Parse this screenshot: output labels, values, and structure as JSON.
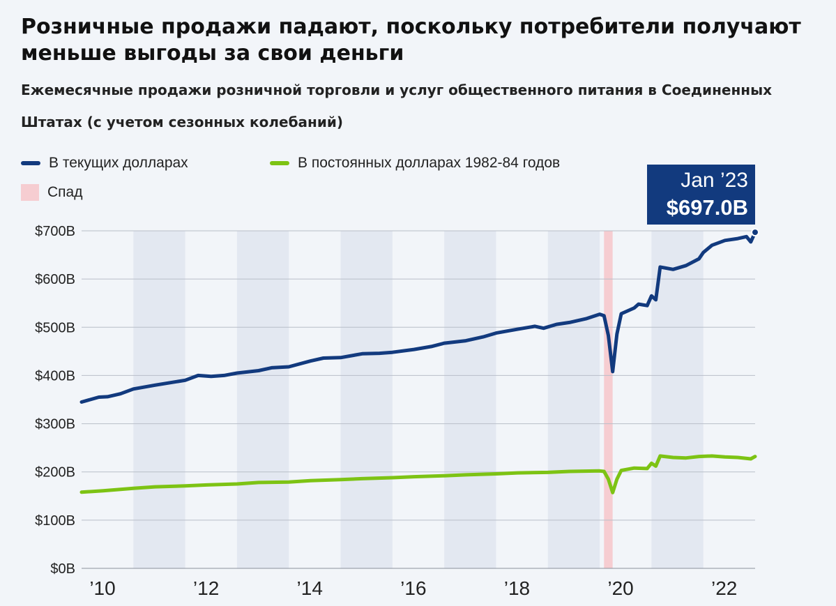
{
  "header": {
    "title": "Розничные продажи падают, поскольку потребители получают меньше выгоды за свои деньги",
    "subtitle": "Ежемесячные продажи розничной торговли и услуг общественного питания в Соединенных Штатах (с учетом сезонных колебаний)"
  },
  "legend": {
    "nominal": "В текущих долларах",
    "real": "В постоянных долларах 1982-84 годов",
    "recession": "Спад"
  },
  "callout": {
    "date": "Jan ’23",
    "value": "$697.0B"
  },
  "colors": {
    "nominal": "#123a7e",
    "real": "#7dc314",
    "recession": "#f6cdd1",
    "band": "#e3e8f1",
    "grid": "#b8bec8",
    "callout_bg": "#123a7e"
  },
  "chart_data": {
    "type": "line",
    "title": "Розничные продажи падают, поскольку потребители получают меньше выгоды за свои деньги",
    "subtitle": "Ежемесячные продажи розничной торговли и услуг общественного питания в Соединенных Штатах (с учетом сезонных колебаний)",
    "xlabel": "",
    "ylabel": "",
    "xlim": [
      "2010-01",
      "2023-01"
    ],
    "ylim": [
      0,
      700
    ],
    "y_ticks": [
      0,
      100,
      200,
      300,
      400,
      500,
      600,
      700
    ],
    "y_tick_labels": [
      "$0B",
      "$100B",
      "$200B",
      "$300B",
      "$400B",
      "$500B",
      "$600B",
      "$700B"
    ],
    "x_ticks": [
      "2010",
      "2012",
      "2014",
      "2016",
      "2018",
      "2020",
      "2022"
    ],
    "x_tick_labels": [
      "’10",
      "’12",
      "’14",
      "’16",
      "’18",
      "’20",
      "’22"
    ],
    "alternating_year_bands": [
      "2011",
      "2013",
      "2015",
      "2017",
      "2019",
      "2021"
    ],
    "recession": {
      "start": "2020-02",
      "end": "2020-04",
      "label": "Спад"
    },
    "grid": true,
    "legend_position": "top-left",
    "annotation": {
      "x": "2023-01",
      "y": 697.0,
      "text": [
        "Jan ’23",
        "$697.0B"
      ]
    },
    "series": [
      {
        "name": "В текущих долларах",
        "color": "#123a7e",
        "points": [
          [
            "2010-01",
            345
          ],
          [
            "2010-03",
            350
          ],
          [
            "2010-05",
            355
          ],
          [
            "2010-07",
            356
          ],
          [
            "2010-10",
            362
          ],
          [
            "2011-01",
            372
          ],
          [
            "2011-06",
            380
          ],
          [
            "2012-01",
            390
          ],
          [
            "2012-04",
            400
          ],
          [
            "2012-07",
            398
          ],
          [
            "2012-10",
            400
          ],
          [
            "2013-01",
            405
          ],
          [
            "2013-06",
            410
          ],
          [
            "2013-09",
            416
          ],
          [
            "2014-01",
            418
          ],
          [
            "2014-06",
            430
          ],
          [
            "2014-09",
            436
          ],
          [
            "2015-01",
            437
          ],
          [
            "2015-06",
            445
          ],
          [
            "2015-10",
            446
          ],
          [
            "2016-01",
            448
          ],
          [
            "2016-06",
            454
          ],
          [
            "2016-10",
            460
          ],
          [
            "2017-01",
            467
          ],
          [
            "2017-06",
            472
          ],
          [
            "2017-10",
            480
          ],
          [
            "2018-01",
            488
          ],
          [
            "2018-06",
            496
          ],
          [
            "2018-10",
            502
          ],
          [
            "2018-12",
            498
          ],
          [
            "2019-03",
            506
          ],
          [
            "2019-06",
            510
          ],
          [
            "2019-10",
            518
          ],
          [
            "2020-01",
            527
          ],
          [
            "2020-02",
            524
          ],
          [
            "2020-03",
            483
          ],
          [
            "2020-04",
            408
          ],
          [
            "2020-05",
            486
          ],
          [
            "2020-06",
            528
          ],
          [
            "2020-09",
            540
          ],
          [
            "2020-10",
            548
          ],
          [
            "2020-12",
            545
          ],
          [
            "2021-01",
            565
          ],
          [
            "2021-02",
            557
          ],
          [
            "2021-03",
            625
          ],
          [
            "2021-06",
            620
          ],
          [
            "2021-09",
            628
          ],
          [
            "2021-12",
            642
          ],
          [
            "2022-01",
            655
          ],
          [
            "2022-03",
            670
          ],
          [
            "2022-06",
            680
          ],
          [
            "2022-09",
            684
          ],
          [
            "2022-11",
            688
          ],
          [
            "2022-12",
            677
          ],
          [
            "2023-01",
            697
          ]
        ]
      },
      {
        "name": "В постоянных долларах 1982-84 годов",
        "color": "#7dc314",
        "points": [
          [
            "2010-01",
            158
          ],
          [
            "2010-06",
            161
          ],
          [
            "2011-01",
            166
          ],
          [
            "2011-06",
            169
          ],
          [
            "2012-01",
            171
          ],
          [
            "2012-06",
            173
          ],
          [
            "2013-01",
            175
          ],
          [
            "2013-06",
            178
          ],
          [
            "2014-01",
            179
          ],
          [
            "2014-06",
            182
          ],
          [
            "2015-01",
            184
          ],
          [
            "2015-06",
            186
          ],
          [
            "2016-01",
            188
          ],
          [
            "2016-06",
            190
          ],
          [
            "2017-01",
            192
          ],
          [
            "2017-06",
            194
          ],
          [
            "2018-01",
            196
          ],
          [
            "2018-06",
            198
          ],
          [
            "2019-01",
            199
          ],
          [
            "2019-06",
            201
          ],
          [
            "2020-01",
            202
          ],
          [
            "2020-02",
            201
          ],
          [
            "2020-03",
            185
          ],
          [
            "2020-04",
            157
          ],
          [
            "2020-05",
            185
          ],
          [
            "2020-06",
            203
          ],
          [
            "2020-09",
            208
          ],
          [
            "2020-12",
            207
          ],
          [
            "2021-01",
            218
          ],
          [
            "2021-02",
            212
          ],
          [
            "2021-03",
            233
          ],
          [
            "2021-06",
            230
          ],
          [
            "2021-09",
            229
          ],
          [
            "2021-12",
            232
          ],
          [
            "2022-03",
            233
          ],
          [
            "2022-06",
            231
          ],
          [
            "2022-09",
            230
          ],
          [
            "2022-12",
            227
          ],
          [
            "2023-01",
            232
          ]
        ]
      }
    ]
  }
}
